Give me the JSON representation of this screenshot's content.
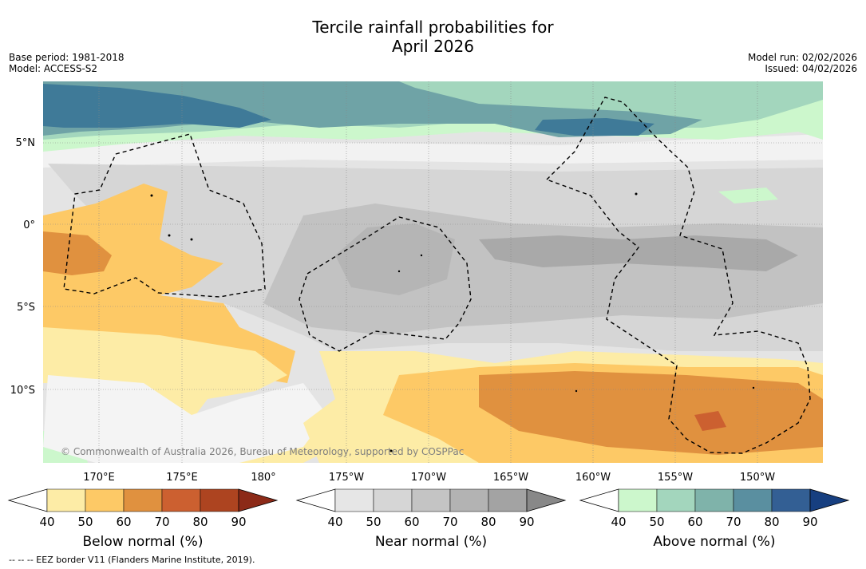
{
  "title": {
    "line1": "Tercile rainfall probabilities for",
    "line2": "April 2026"
  },
  "meta_left": {
    "base_period": "Base period: 1981-2018",
    "model": "Model: ACCESS-S2"
  },
  "meta_right": {
    "model_run": "Model run: 02/02/2026",
    "issued": "Issued: 04/02/2026"
  },
  "map": {
    "lat_labels": [
      "5°N",
      "0°",
      "5°S",
      "10°S"
    ],
    "lon_labels": [
      "170°E",
      "175°E",
      "180°",
      "175°W",
      "170°W",
      "165°W",
      "160°W",
      "155°W",
      "150°W"
    ],
    "copyright": "© Commonwealth of Australia 2026, Bureau of Meteorology, supported by COSPPac"
  },
  "colorbars": [
    {
      "title": "Below normal (%)",
      "ticks": [
        "40",
        "50",
        "60",
        "70",
        "80",
        "90"
      ],
      "colors": [
        "#fdeca6",
        "#fdc966",
        "#e0913f",
        "#cc6030",
        "#ad4420",
        "#8c2a18"
      ]
    },
    {
      "title": "Near normal (%)",
      "ticks": [
        "40",
        "50",
        "60",
        "70",
        "80",
        "90"
      ],
      "colors": [
        "#e6e6e6",
        "#d6d6d6",
        "#c4c4c4",
        "#b3b3b3",
        "#a3a3a3",
        "#888888"
      ]
    },
    {
      "title": "Above normal (%)",
      "ticks": [
        "40",
        "50",
        "60",
        "70",
        "80",
        "90"
      ],
      "colors": [
        "#ccf7cc",
        "#a3d6bd",
        "#7fb3aa",
        "#5a8fa0",
        "#335f94",
        "#173f80"
      ]
    }
  ],
  "eez_note": "--  --  -- EEZ border V11 (Flanders Marine Institute, 2019)."
}
